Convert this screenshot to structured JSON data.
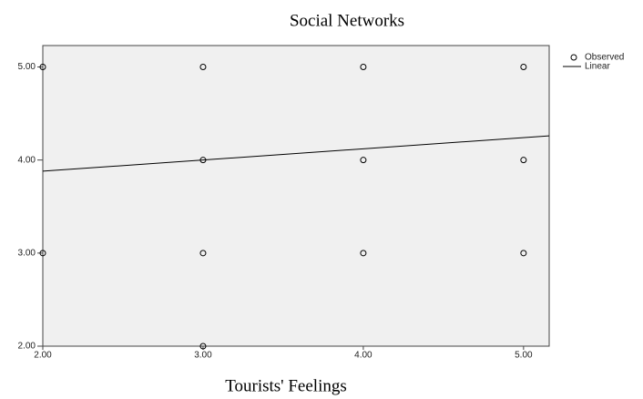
{
  "chart_data": {
    "type": "scatter",
    "title": "Social Networks",
    "x_label": "Tourists' Feelings",
    "series": [
      {
        "name": "Observed",
        "kind": "marker",
        "color": "#000000",
        "x": [
          2,
          3,
          4,
          5,
          3,
          4,
          5,
          2,
          3,
          4,
          5,
          3
        ],
        "values": [
          5,
          5,
          5,
          5,
          4,
          4,
          4,
          3,
          3,
          3,
          3,
          2
        ]
      },
      {
        "name": "Linear",
        "kind": "line",
        "color": "#000000",
        "x": [
          2,
          5.16
        ],
        "values": [
          3.88,
          4.26
        ]
      }
    ],
    "xlim": [
      2,
      5.16
    ],
    "ylim": [
      2,
      5.23
    ],
    "xticks": [
      {
        "value": 2,
        "label": "2.00"
      },
      {
        "value": 3,
        "label": "3.00"
      },
      {
        "value": 4,
        "label": "4.00"
      },
      {
        "value": 5,
        "label": "5.00"
      }
    ],
    "yticks": [
      {
        "value": 2,
        "label": "2.00"
      },
      {
        "value": 3,
        "label": "3.00"
      },
      {
        "value": 4,
        "label": "4.00"
      },
      {
        "value": 5,
        "label": "5.00"
      }
    ],
    "grid": false,
    "legend": "right",
    "background": "#f0f0f0"
  }
}
